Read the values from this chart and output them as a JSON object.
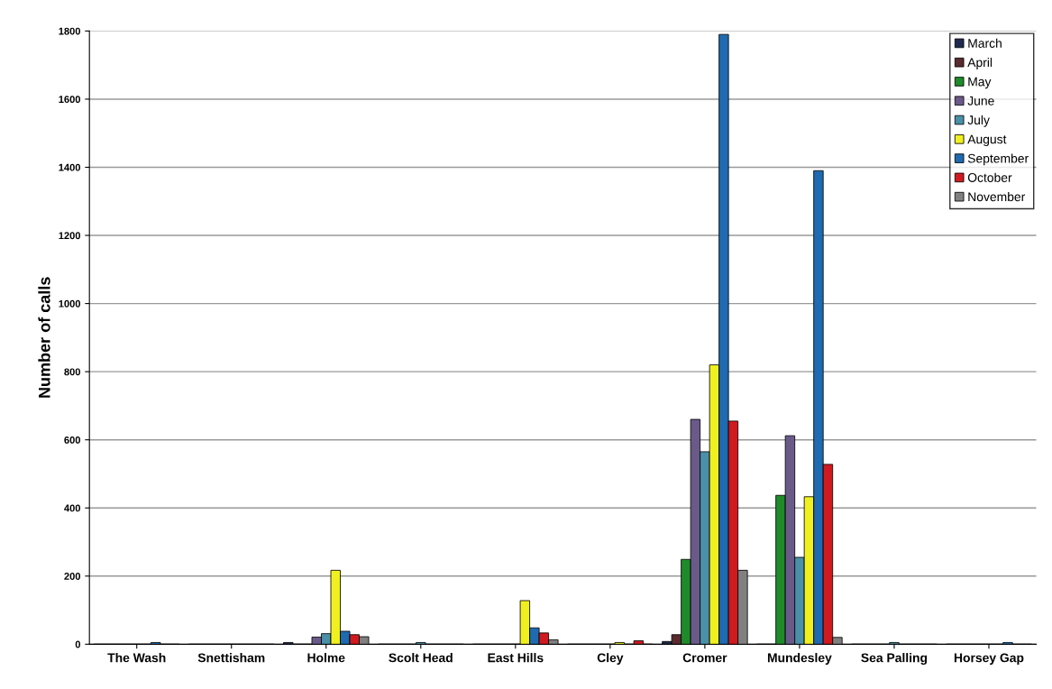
{
  "chart_data": {
    "type": "bar",
    "ylabel": "Number of calls",
    "categories": [
      "The Wash",
      "Snettisham",
      "Holme",
      "Scolt Head",
      "East Hills",
      "Cley",
      "Cromer",
      "Mundesley",
      "Sea Palling",
      "Horsey Gap"
    ],
    "series": [
      {
        "name": "March",
        "color": "#1f2a4e",
        "values": [
          0,
          0,
          5,
          0,
          0,
          0,
          8,
          0,
          0,
          0
        ]
      },
      {
        "name": "April",
        "color": "#5a2a2e",
        "values": [
          0,
          0,
          0,
          0,
          0,
          0,
          28,
          0,
          0,
          0
        ]
      },
      {
        "name": "May",
        "color": "#1f8a2a",
        "values": [
          0,
          0,
          0,
          0,
          0,
          0,
          249,
          437,
          0,
          0
        ]
      },
      {
        "name": "June",
        "color": "#6a5a8a",
        "values": [
          0,
          0,
          21,
          0,
          0,
          0,
          660,
          612,
          0,
          0
        ]
      },
      {
        "name": "July",
        "color": "#4a90a8",
        "values": [
          0,
          0,
          31,
          5,
          0,
          0,
          565,
          255,
          5,
          0
        ]
      },
      {
        "name": "August",
        "color": "#f0f020",
        "values": [
          0,
          0,
          217,
          0,
          128,
          5,
          820,
          433,
          0,
          0
        ]
      },
      {
        "name": "September",
        "color": "#1f6ab0",
        "values": [
          5,
          0,
          38,
          0,
          48,
          0,
          1790,
          1390,
          0,
          5
        ]
      },
      {
        "name": "October",
        "color": "#d01a20",
        "values": [
          0,
          0,
          28,
          0,
          33,
          10,
          655,
          528,
          0,
          0
        ]
      },
      {
        "name": "November",
        "color": "#808080",
        "values": [
          0,
          0,
          22,
          0,
          13,
          0,
          217,
          20,
          0,
          0
        ]
      }
    ],
    "ylim": [
      0,
      1800
    ],
    "yticks": [
      0,
      200,
      400,
      600,
      800,
      1000,
      1200,
      1400,
      1600,
      1800
    ],
    "grid": "y",
    "legend": "top right"
  }
}
